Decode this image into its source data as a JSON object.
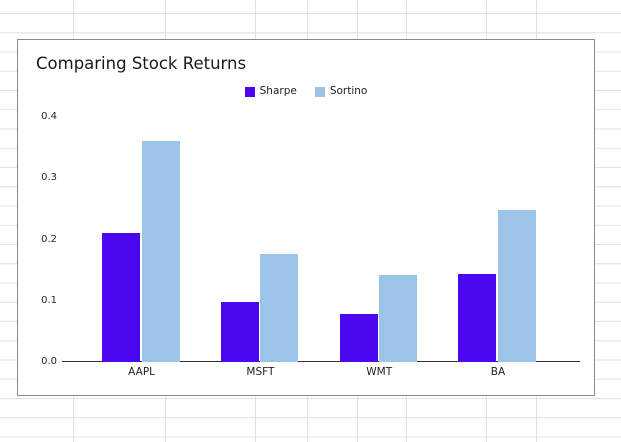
{
  "chart": {
    "title": "Comparing Stock Returns"
  },
  "chart_data": {
    "type": "bar",
    "title": "Comparing Stock Returns",
    "categories": [
      "AAPL",
      "MSFT",
      "WMT",
      "BA"
    ],
    "series": [
      {
        "name": "Sharpe",
        "color": "#4B08F0",
        "values": [
          0.21,
          0.098,
          0.079,
          0.143
        ]
      },
      {
        "name": "Sortino",
        "color": "#9CC4E8",
        "values": [
          0.36,
          0.177,
          0.142,
          0.248
        ]
      }
    ],
    "xlabel": "",
    "ylabel": "",
    "ylim": [
      0,
      0.4
    ],
    "yticks": [
      "0.0",
      "0.1",
      "0.2",
      "0.3",
      "0.4"
    ],
    "grid": false,
    "legend_position": "top-center",
    "colors": {
      "sharpe": "#4B08F0",
      "sortino": "#9CC4E8",
      "axis_line": "#333333",
      "chart_border": "#8a8a8a",
      "sheet_gridline": "#e1e1e1"
    }
  }
}
